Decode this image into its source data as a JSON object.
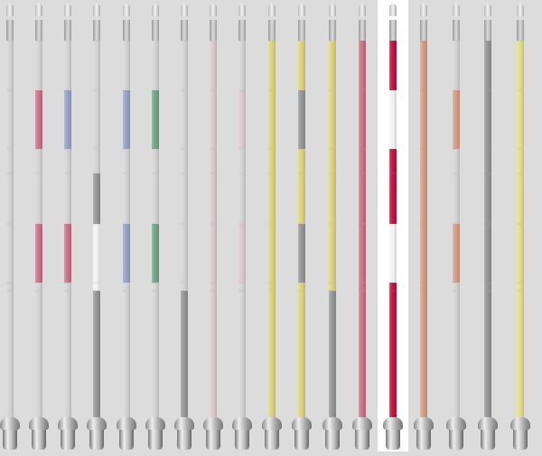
{
  "selected_index": 13,
  "colors": {
    "base": "#d3d3d3",
    "pink": "#cc7088",
    "blue": "#98a0c8",
    "darkgray": "#959595",
    "white": "#f2f2f2",
    "green": "#6fa584",
    "lightpink": "#dcc8cc",
    "yellow": "#dcd27a",
    "red": "#c8103a",
    "salmon": "#d49c84",
    "paleyellow": "#e2de86"
  },
  "poles": [
    {
      "pattern": [
        "base",
        "base",
        "base",
        "base",
        "base",
        "base",
        "base"
      ]
    },
    {
      "pattern": [
        "base",
        "pink",
        "base",
        "base",
        "pink",
        "base",
        "base"
      ]
    },
    {
      "pattern": [
        "base",
        "blue",
        "base",
        "base",
        "pink",
        "base",
        "base"
      ]
    },
    {
      "pattern": [
        "base",
        "base",
        "base",
        "darkgray",
        "white",
        "white",
        "darkgray"
      ]
    },
    {
      "pattern": [
        "base",
        "blue",
        "base",
        "base",
        "blue",
        "base",
        "base"
      ]
    },
    {
      "pattern": [
        "base",
        "green",
        "base",
        "base",
        "green",
        "base",
        "base"
      ]
    },
    {
      "pattern": [
        "base",
        "base",
        "base",
        "base",
        "base",
        "base",
        "darkgray"
      ]
    },
    {
      "pattern": [
        "lightpink",
        "lightpink",
        "lightpink",
        "lightpink",
        "lightpink",
        "lightpink",
        "lightpink"
      ]
    },
    {
      "pattern": [
        "base",
        "lightpink",
        "base",
        "base",
        "lightpink",
        "base",
        "base"
      ]
    },
    {
      "pattern": [
        "yellow",
        "yellow",
        "yellow",
        "yellow",
        "yellow",
        "yellow",
        "yellow"
      ]
    },
    {
      "pattern": [
        "yellow",
        "darkgray",
        "yellow",
        "yellow",
        "darkgray",
        "yellow",
        "yellow"
      ]
    },
    {
      "pattern": [
        "yellow",
        "yellow",
        "yellow",
        "yellow",
        "yellow",
        "yellow",
        "darkgray"
      ]
    },
    {
      "pattern": [
        "pink",
        "pink",
        "pink",
        "pink",
        "pink",
        "pink",
        "pink"
      ]
    },
    {
      "pattern": [
        "red",
        "white",
        "red",
        "red",
        "white",
        "red",
        "red"
      ]
    },
    {
      "pattern": [
        "salmon",
        "salmon",
        "salmon",
        "salmon",
        "salmon",
        "salmon",
        "salmon"
      ]
    },
    {
      "pattern": [
        "base",
        "salmon",
        "base",
        "base",
        "salmon",
        "base",
        "base"
      ]
    },
    {
      "pattern": [
        "darkgray",
        "darkgray",
        "darkgray",
        "darkgray",
        "darkgray",
        "darkgray",
        "darkgray"
      ]
    },
    {
      "pattern": [
        "paleyellow",
        "paleyellow",
        "paleyellow",
        "paleyellow",
        "paleyellow",
        "paleyellow",
        "paleyellow"
      ]
    }
  ]
}
